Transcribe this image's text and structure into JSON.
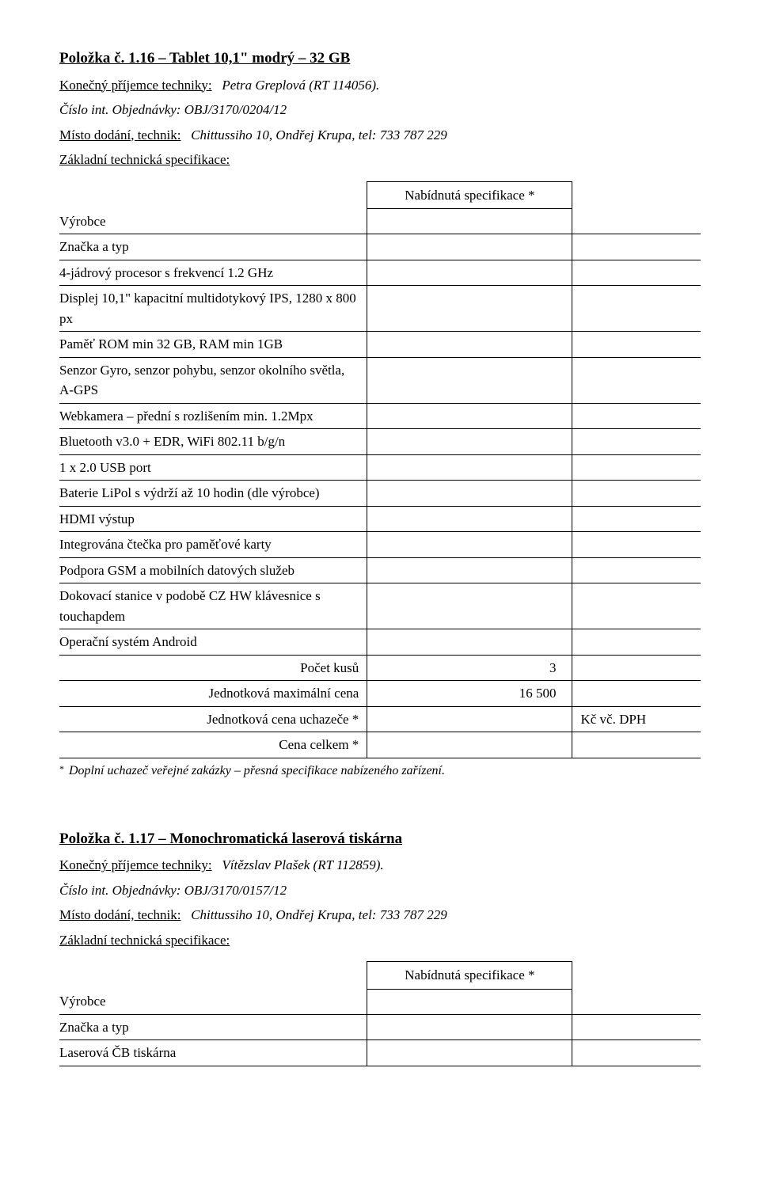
{
  "item1": {
    "title": "Položka č. 1.16 – Tablet  10,1\" modrý – 32 GB",
    "recipient_label": "Konečný příjemce techniky:",
    "recipient_value": "Petra Greplová (RT 114056).",
    "order": "Číslo int. Objednávky: OBJ/3170/0204/12",
    "delivery_label": "Místo dodání, technik:",
    "delivery_value": "Chittussiho 10, Ondřej Krupa, tel: 733 787 229",
    "specheader": "Základní technická specifikace:",
    "offered_spec_label": "Nabídnutá specifikace *",
    "rows": [
      "Výrobce",
      "Značka a typ",
      "4-jádrový  procesor s frekvencí 1.2 GHz",
      "Displej 10,1\" kapacitní multidotykový IPS, 1280 x 800 px",
      "Paměť ROM min 32 GB,  RAM min 1GB",
      "Senzor Gyro, senzor pohybu, senzor okolního světla, A-GPS",
      "Webkamera – přední s rozlišením min. 1.2Mpx",
      "Bluetooth v3.0 + EDR,  WiFi  802.11 b/g/n",
      "1 x 2.0 USB port",
      "Baterie LiPol s výdrží až 10 hodin (dle výrobce)",
      "HDMI výstup",
      "Integrována čtečka pro paměťové karty",
      "Podpora GSM a mobilních datových služeb",
      "Dokovací stanice v podobě CZ HW klávesnice s touchapdem",
      "Operační systém Android"
    ],
    "qty_label": "Počet kusů",
    "qty_value": "3",
    "unitmax_label": "Jednotková maximální cena",
    "unitmax_value": "16 500",
    "unitbid_label": "Jednotková cena uchazeče *",
    "unitbid_currency": "Kč vč. DPH",
    "total_label": "Cena celkem *",
    "footnote": "Doplní uchazeč veřejné zakázky – přesná specifikace nabízeného zařízení.",
    "footnote_star": "*"
  },
  "item2": {
    "title": "Položka č. 1.17 – Monochromatická laserová tiskárna",
    "recipient_label": "Konečný příjemce techniky:",
    "recipient_value": "Vítězslav Plašek  (RT 112859).",
    "order": "Číslo int. Objednávky: OBJ/3170/0157/12",
    "delivery_label": "Místo dodání, technik:",
    "delivery_value": "Chittussiho 10, Ondřej Krupa, tel: 733 787 229",
    "specheader": "Základní technická specifikace:",
    "offered_spec_label": "Nabídnutá specifikace *",
    "rows": [
      "Výrobce",
      "Značka a typ",
      "Laserová ČB tiskárna"
    ]
  }
}
